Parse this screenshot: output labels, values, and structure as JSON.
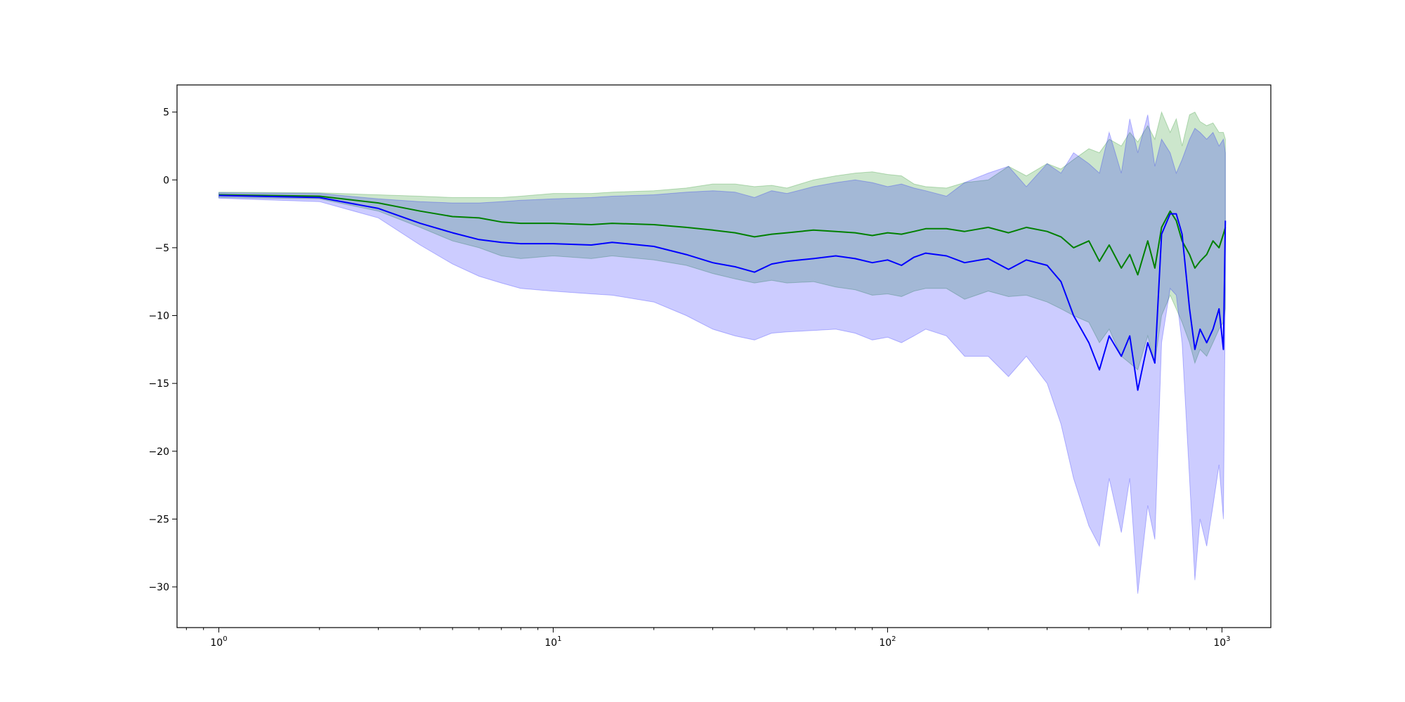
{
  "chart_data": {
    "type": "line",
    "title": "",
    "xlabel": "",
    "ylabel": "",
    "xscale": "log",
    "xlim": [
      0.75,
      1400
    ],
    "ylim": [
      -33,
      7
    ],
    "grid": false,
    "legend": "none",
    "x_tick_labels": [
      {
        "value": 1,
        "base": "10",
        "exp": "0"
      },
      {
        "value": 10,
        "base": "10",
        "exp": "1"
      },
      {
        "value": 100,
        "base": "10",
        "exp": "2"
      },
      {
        "value": 1000,
        "base": "10",
        "exp": "3"
      }
    ],
    "y_ticks": [
      5,
      0,
      -5,
      -10,
      -15,
      -20,
      -25,
      -30
    ],
    "y_tick_labels": [
      "5",
      "0",
      "−5",
      "−10",
      "−15",
      "−20",
      "−25",
      "−30"
    ],
    "series": [
      {
        "color": "#008000",
        "band_color": "#008000",
        "x": [
          1,
          2,
          3,
          4,
          5,
          6,
          7,
          8,
          10,
          13,
          15,
          20,
          25,
          30,
          35,
          40,
          45,
          50,
          60,
          70,
          80,
          90,
          100,
          110,
          120,
          130,
          150,
          170,
          200,
          230,
          260,
          300,
          330,
          360,
          400,
          430,
          460,
          500,
          530,
          560,
          600,
          630,
          660,
          700,
          730,
          760,
          800,
          830,
          860,
          900,
          940,
          980,
          1010,
          1024
        ],
        "y": [
          -1.1,
          -1.2,
          -1.7,
          -2.3,
          -2.7,
          -2.8,
          -3.1,
          -3.2,
          -3.2,
          -3.3,
          -3.2,
          -3.3,
          -3.5,
          -3.7,
          -3.9,
          -4.2,
          -4.0,
          -3.9,
          -3.7,
          -3.8,
          -3.9,
          -4.1,
          -3.9,
          -4.0,
          -3.8,
          -3.6,
          -3.6,
          -3.8,
          -3.5,
          -3.9,
          -3.5,
          -3.8,
          -4.2,
          -5.0,
          -4.5,
          -6.0,
          -4.8,
          -6.5,
          -5.5,
          -7.0,
          -4.5,
          -6.5,
          -3.5,
          -2.3,
          -3.0,
          -4.5,
          -5.5,
          -6.5,
          -6.0,
          -5.5,
          -4.5,
          -5.0,
          -4.0,
          -3.5
        ],
        "upper": [
          -0.9,
          -0.95,
          -1.1,
          -1.2,
          -1.3,
          -1.3,
          -1.3,
          -1.2,
          -1.0,
          -1.0,
          -0.9,
          -0.8,
          -0.6,
          -0.3,
          -0.3,
          -0.5,
          -0.4,
          -0.6,
          0.0,
          0.3,
          0.5,
          0.6,
          0.4,
          0.3,
          -0.3,
          -0.5,
          -0.6,
          -0.2,
          0.0,
          1.0,
          0.3,
          1.2,
          0.8,
          1.5,
          2.3,
          2.0,
          3.0,
          2.5,
          3.5,
          2.8,
          4.0,
          3.0,
          5.0,
          3.5,
          4.5,
          2.5,
          4.8,
          5.0,
          4.3,
          4.0,
          4.2,
          3.5,
          3.5,
          3.0
        ],
        "lower": [
          -1.3,
          -1.4,
          -2.3,
          -3.5,
          -4.5,
          -5.0,
          -5.6,
          -5.8,
          -5.6,
          -5.8,
          -5.6,
          -5.9,
          -6.3,
          -6.9,
          -7.3,
          -7.6,
          -7.4,
          -7.6,
          -7.5,
          -7.9,
          -8.1,
          -8.5,
          -8.4,
          -8.6,
          -8.2,
          -8.0,
          -8.0,
          -8.8,
          -8.2,
          -8.6,
          -8.5,
          -9.0,
          -9.5,
          -10.0,
          -10.5,
          -12.0,
          -11.0,
          -13.0,
          -13.5,
          -14.0,
          -11.5,
          -13.5,
          -10.0,
          -8.5,
          -9.5,
          -10.5,
          -12.0,
          -13.5,
          -12.5,
          -13.0,
          -12.0,
          -11.0,
          -10.5,
          -9.5
        ]
      },
      {
        "color": "#0000ff",
        "band_color": "#0000ff",
        "x": [
          1,
          2,
          3,
          4,
          5,
          6,
          7,
          8,
          10,
          13,
          15,
          20,
          25,
          30,
          35,
          40,
          45,
          50,
          60,
          70,
          80,
          90,
          100,
          110,
          120,
          130,
          150,
          170,
          200,
          230,
          260,
          300,
          330,
          360,
          400,
          430,
          460,
          500,
          530,
          560,
          600,
          630,
          660,
          700,
          730,
          760,
          800,
          830,
          860,
          900,
          940,
          980,
          1010,
          1024
        ],
        "y": [
          -1.15,
          -1.3,
          -2.1,
          -3.2,
          -3.9,
          -4.4,
          -4.6,
          -4.7,
          -4.7,
          -4.8,
          -4.6,
          -4.9,
          -5.5,
          -6.1,
          -6.4,
          -6.8,
          -6.2,
          -6.0,
          -5.8,
          -5.6,
          -5.8,
          -6.1,
          -5.9,
          -6.3,
          -5.7,
          -5.4,
          -5.6,
          -6.1,
          -5.8,
          -6.6,
          -5.9,
          -6.3,
          -7.5,
          -10.0,
          -12.0,
          -14.0,
          -11.5,
          -13.0,
          -11.5,
          -15.5,
          -12.0,
          -13.5,
          -4.0,
          -2.5,
          -2.5,
          -4.0,
          -9.5,
          -12.5,
          -11.0,
          -12.0,
          -11.0,
          -9.5,
          -12.5,
          -3.0
        ],
        "upper": [
          -0.95,
          -1.0,
          -1.4,
          -1.6,
          -1.7,
          -1.7,
          -1.6,
          -1.5,
          -1.4,
          -1.3,
          -1.2,
          -1.1,
          -0.9,
          -0.8,
          -0.9,
          -1.3,
          -0.8,
          -1.0,
          -0.5,
          -0.2,
          0.0,
          -0.2,
          -0.5,
          -0.3,
          -0.6,
          -0.8,
          -1.2,
          -0.2,
          0.5,
          1.0,
          -0.5,
          1.2,
          0.5,
          2.0,
          1.2,
          0.5,
          3.5,
          0.5,
          4.5,
          2.0,
          4.8,
          1.0,
          3.0,
          2.0,
          0.5,
          1.5,
          3.0,
          3.8,
          3.5,
          3.0,
          3.5,
          2.5,
          3.0,
          2.0
        ],
        "lower": [
          -1.35,
          -1.6,
          -2.8,
          -4.8,
          -6.2,
          -7.1,
          -7.6,
          -8.0,
          -8.2,
          -8.4,
          -8.5,
          -9.0,
          -10.0,
          -11.0,
          -11.5,
          -11.8,
          -11.3,
          -11.2,
          -11.1,
          -11.0,
          -11.3,
          -11.8,
          -11.6,
          -12.0,
          -11.5,
          -11.0,
          -11.5,
          -13.0,
          -13.0,
          -14.5,
          -13.0,
          -15.0,
          -18.0,
          -22.0,
          -25.5,
          -27.0,
          -22.0,
          -26.0,
          -22.0,
          -30.5,
          -24.0,
          -26.5,
          -12.0,
          -8.0,
          -8.5,
          -12.0,
          -22.0,
          -29.5,
          -25.0,
          -27.0,
          -24.0,
          -21.0,
          -25.0,
          -8.0
        ]
      }
    ]
  }
}
